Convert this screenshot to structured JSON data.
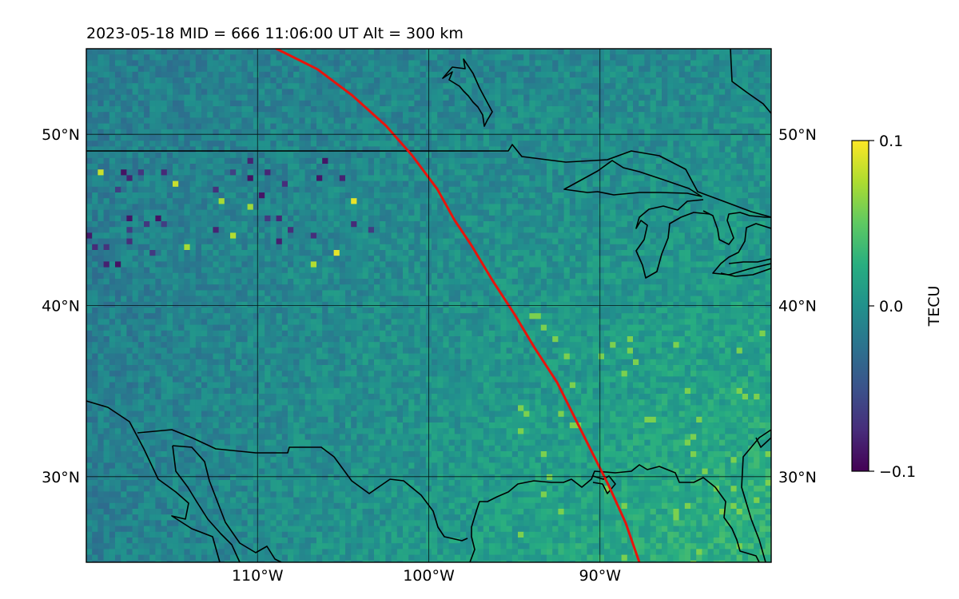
{
  "map": {
    "title": "2023-05-18  MID = 666    11:06:00  UT  Alt = 300 km",
    "extent": {
      "lon": [
        -120,
        -80
      ],
      "lat": [
        25,
        55
      ]
    },
    "grid": true,
    "lat_ticks": [
      {
        "value": 30,
        "label": "30°N"
      },
      {
        "value": 40,
        "label": "40°N"
      },
      {
        "value": 50,
        "label": "50°N"
      }
    ],
    "lon_ticks": [
      {
        "value": -110,
        "label": "110°W"
      },
      {
        "value": -100,
        "label": "100°W"
      },
      {
        "value": -90,
        "label": "90°W"
      }
    ],
    "colormap": "viridis",
    "field_description": "TEC perturbation field, mostly near 0.0 with greener positive values in the southeast and scattered dark negative pixels in the northwest",
    "track": {
      "color": "#e8140c",
      "points": [
        [
          -108.9,
          55
        ],
        [
          -106.5,
          53.8
        ],
        [
          -104.5,
          52.3
        ],
        [
          -102.5,
          50.5
        ],
        [
          -101,
          48.8
        ],
        [
          -99.5,
          46.8
        ],
        [
          -98.5,
          45
        ],
        [
          -97.5,
          43.5
        ],
        [
          -96.3,
          41.5
        ],
        [
          -95,
          39.5
        ],
        [
          -93.8,
          37.5
        ],
        [
          -92.5,
          35.5
        ],
        [
          -91.5,
          33.5
        ],
        [
          -90.5,
          31.5
        ],
        [
          -89.5,
          29.5
        ],
        [
          -88.5,
          27.3
        ],
        [
          -87.7,
          25
        ]
      ]
    }
  },
  "colorbar": {
    "label": "TECU",
    "min": -0.1,
    "max": 0.1,
    "ticks": [
      {
        "value": 0.1,
        "label": "0.1"
      },
      {
        "value": 0.0,
        "label": "0.0"
      },
      {
        "value": -0.1,
        "label": "−0.1"
      }
    ]
  }
}
